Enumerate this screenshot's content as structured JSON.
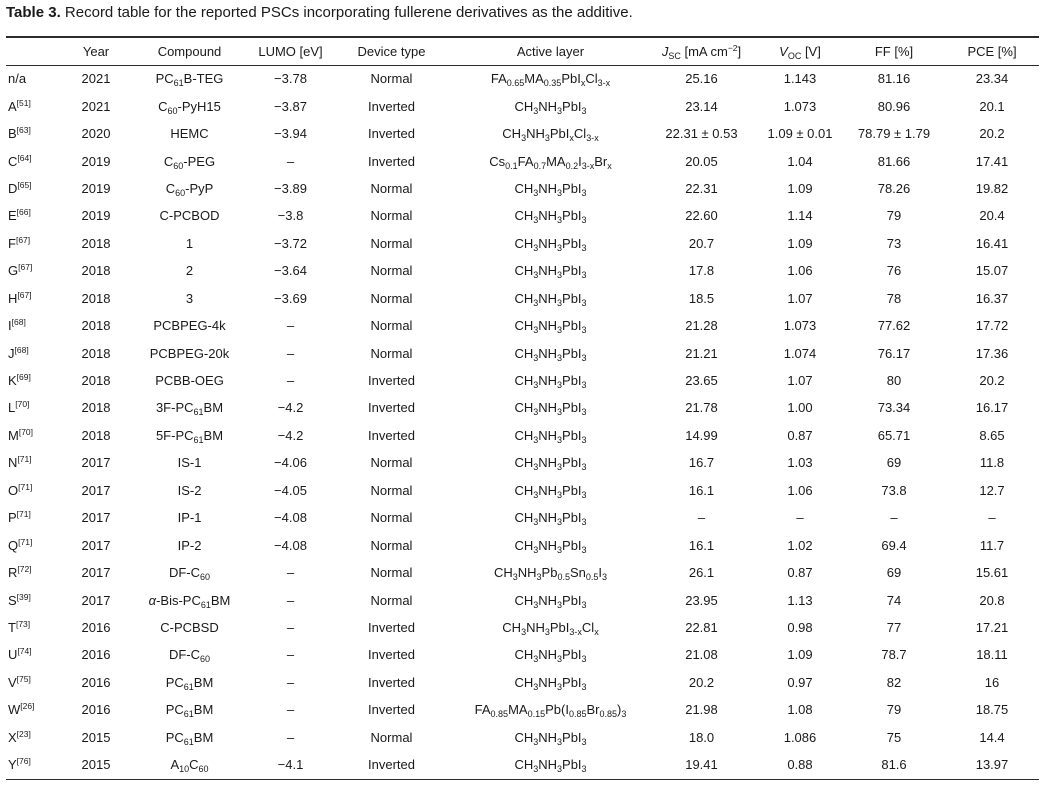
{
  "caption": {
    "label": "Table 3.",
    "text": "Record table for the reported PSCs incorporating fullerene derivatives as the additive."
  },
  "columns": [
    {
      "key": "id",
      "label": ""
    },
    {
      "key": "year",
      "label": "Year"
    },
    {
      "key": "compound",
      "label": "Compound"
    },
    {
      "key": "lumo",
      "label": "LUMO [eV]"
    },
    {
      "key": "device",
      "label": "Device type"
    },
    {
      "key": "active",
      "label": "Active layer"
    },
    {
      "key": "jsc",
      "label": "<i>J</i><sub>SC</sub> [mA cm<sup>−2</sup>]"
    },
    {
      "key": "voc",
      "label": "<i>V</i><sub>OC</sub> [V]"
    },
    {
      "key": "ff",
      "label": "FF [%]"
    },
    {
      "key": "pce",
      "label": "PCE [%]"
    }
  ],
  "rows": [
    {
      "id": "n/a",
      "year": "2021",
      "compound": "PC<sub>61</sub>B-TEG",
      "lumo": "−3.78",
      "device": "Normal",
      "active": "FA<sub>0.65</sub>MA<sub>0.35</sub>PbI<sub>x</sub>Cl<sub>3-x</sub>",
      "jsc": "25.16",
      "voc": "1.143",
      "ff": "81.16",
      "pce": "23.34"
    },
    {
      "id": "A<sup>[51]</sup>",
      "year": "2021",
      "compound": "C<sub>60</sub>-PyH15",
      "lumo": "−3.87",
      "device": "Inverted",
      "active": "CH<sub>3</sub>NH<sub>3</sub>PbI<sub>3</sub>",
      "jsc": "23.14",
      "voc": "1.073",
      "ff": "80.96",
      "pce": "20.1"
    },
    {
      "id": "B<sup>[63]</sup>",
      "year": "2020",
      "compound": "HEMC",
      "lumo": "−3.94",
      "device": "Inverted",
      "active": "CH<sub>3</sub>NH<sub>3</sub>PbI<sub>x</sub>Cl<sub>3-x</sub>",
      "jsc": "22.31 ± 0.53",
      "voc": "1.09 ± 0.01",
      "ff": "78.79 ± 1.79",
      "pce": "20.2"
    },
    {
      "id": "C<sup>[64]</sup>",
      "year": "2019",
      "compound": "C<sub>60</sub>-PEG",
      "lumo": "–",
      "device": "Inverted",
      "active": "Cs<sub>0.1</sub>FA<sub>0.7</sub>MA<sub>0.2</sub>I<sub>3-x</sub>Br<sub>x</sub>",
      "jsc": "20.05",
      "voc": "1.04",
      "ff": "81.66",
      "pce": "17.41"
    },
    {
      "id": "D<sup>[65]</sup>",
      "year": "2019",
      "compound": "C<sub>60</sub>-PyP",
      "lumo": "−3.89",
      "device": "Normal",
      "active": "CH<sub>3</sub>NH<sub>3</sub>PbI<sub>3</sub>",
      "jsc": "22.31",
      "voc": "1.09",
      "ff": "78.26",
      "pce": "19.82"
    },
    {
      "id": "E<sup>[66]</sup>",
      "year": "2019",
      "compound": "C-PCBOD",
      "lumo": "−3.8",
      "device": "Normal",
      "active": "CH<sub>3</sub>NH<sub>3</sub>PbI<sub>3</sub>",
      "jsc": "22.60",
      "voc": "1.14",
      "ff": "79",
      "pce": "20.4"
    },
    {
      "id": "F<sup>[67]</sup>",
      "year": "2018",
      "compound": "1",
      "lumo": "−3.72",
      "device": "Normal",
      "active": "CH<sub>3</sub>NH<sub>3</sub>PbI<sub>3</sub>",
      "jsc": "20.7",
      "voc": "1.09",
      "ff": "73",
      "pce": "16.41"
    },
    {
      "id": "G<sup>[67]</sup>",
      "year": "2018",
      "compound": "2",
      "lumo": "−3.64",
      "device": "Normal",
      "active": "CH<sub>3</sub>NH<sub>3</sub>PbI<sub>3</sub>",
      "jsc": "17.8",
      "voc": "1.06",
      "ff": "76",
      "pce": "15.07"
    },
    {
      "id": "H<sup>[67]</sup>",
      "year": "2018",
      "compound": "3",
      "lumo": "−3.69",
      "device": "Normal",
      "active": "CH<sub>3</sub>NH<sub>3</sub>PbI<sub>3</sub>",
      "jsc": "18.5",
      "voc": "1.07",
      "ff": "78",
      "pce": "16.37"
    },
    {
      "id": "I<sup>[68]</sup>",
      "year": "2018",
      "compound": "PCBPEG-4k",
      "lumo": "–",
      "device": "Normal",
      "active": "CH<sub>3</sub>NH<sub>3</sub>PbI<sub>3</sub>",
      "jsc": "21.28",
      "voc": "1.073",
      "ff": "77.62",
      "pce": "17.72"
    },
    {
      "id": "J<sup>[68]</sup>",
      "year": "2018",
      "compound": "PCBPEG-20k",
      "lumo": "–",
      "device": "Normal",
      "active": "CH<sub>3</sub>NH<sub>3</sub>PbI<sub>3</sub>",
      "jsc": "21.21",
      "voc": "1.074",
      "ff": "76.17",
      "pce": "17.36"
    },
    {
      "id": "K<sup>[69]</sup>",
      "year": "2018",
      "compound": "PCBB-OEG",
      "lumo": "–",
      "device": "Inverted",
      "active": "CH<sub>3</sub>NH<sub>3</sub>PbI<sub>3</sub>",
      "jsc": "23.65",
      "voc": "1.07",
      "ff": "80",
      "pce": "20.2"
    },
    {
      "id": "L<sup>[70]</sup>",
      "year": "2018",
      "compound": "3F-PC<sub>61</sub>BM",
      "lumo": "−4.2",
      "device": "Inverted",
      "active": "CH<sub>3</sub>NH<sub>3</sub>PbI<sub>3</sub>",
      "jsc": "21.78",
      "voc": "1.00",
      "ff": "73.34",
      "pce": "16.17"
    },
    {
      "id": "M<sup>[70]</sup>",
      "year": "2018",
      "compound": "5F-PC<sub>61</sub>BM",
      "lumo": "−4.2",
      "device": "Inverted",
      "active": "CH<sub>3</sub>NH<sub>3</sub>PbI<sub>3</sub>",
      "jsc": "14.99",
      "voc": "0.87",
      "ff": "65.71",
      "pce": "8.65"
    },
    {
      "id": "N<sup>[71]</sup>",
      "year": "2017",
      "compound": "IS-1",
      "lumo": "−4.06",
      "device": "Normal",
      "active": "CH<sub>3</sub>NH<sub>3</sub>PbI<sub>3</sub>",
      "jsc": "16.7",
      "voc": "1.03",
      "ff": "69",
      "pce": "11.8"
    },
    {
      "id": "O<sup>[71]</sup>",
      "year": "2017",
      "compound": "IS-2",
      "lumo": "−4.05",
      "device": "Normal",
      "active": "CH<sub>3</sub>NH<sub>3</sub>PbI<sub>3</sub>",
      "jsc": "16.1",
      "voc": "1.06",
      "ff": "73.8",
      "pce": "12.7"
    },
    {
      "id": "P<sup>[71]</sup>",
      "year": "2017",
      "compound": "IP-1",
      "lumo": "−4.08",
      "device": "Normal",
      "active": "CH<sub>3</sub>NH<sub>3</sub>PbI<sub>3</sub>",
      "jsc": "–",
      "voc": "–",
      "ff": "–",
      "pce": "–"
    },
    {
      "id": "Q<sup>[71]</sup>",
      "year": "2017",
      "compound": "IP-2",
      "lumo": "−4.08",
      "device": "Normal",
      "active": "CH<sub>3</sub>NH<sub>3</sub>PbI<sub>3</sub>",
      "jsc": "16.1",
      "voc": "1.02",
      "ff": "69.4",
      "pce": "11.7"
    },
    {
      "id": "R<sup>[72]</sup>",
      "year": "2017",
      "compound": "DF-C<sub>60</sub>",
      "lumo": "–",
      "device": "Normal",
      "active": "CH<sub>3</sub>NH<sub>3</sub>Pb<sub>0.5</sub>Sn<sub>0.5</sub>I<sub>3</sub>",
      "jsc": "26.1",
      "voc": "0.87",
      "ff": "69",
      "pce": "15.61"
    },
    {
      "id": "S<sup>[39]</sup>",
      "year": "2017",
      "compound": "<i>α</i>-Bis-PC<sub>61</sub>BM",
      "lumo": "–",
      "device": "Normal",
      "active": "CH<sub>3</sub>NH<sub>3</sub>PbI<sub>3</sub>",
      "jsc": "23.95",
      "voc": "1.13",
      "ff": "74",
      "pce": "20.8"
    },
    {
      "id": "T<sup>[73]</sup>",
      "year": "2016",
      "compound": "C-PCBSD",
      "lumo": "–",
      "device": "Inverted",
      "active": "CH<sub>3</sub>NH<sub>3</sub>PbI<sub>3-x</sub>Cl<sub>x</sub>",
      "jsc": "22.81",
      "voc": "0.98",
      "ff": "77",
      "pce": "17.21"
    },
    {
      "id": "U<sup>[74]</sup>",
      "year": "2016",
      "compound": "DF-C<sub>60</sub>",
      "lumo": "–",
      "device": "Inverted",
      "active": "CH<sub>3</sub>NH<sub>3</sub>PbI<sub>3</sub>",
      "jsc": "21.08",
      "voc": "1.09",
      "ff": "78.7",
      "pce": "18.11"
    },
    {
      "id": "V<sup>[75]</sup>",
      "year": "2016",
      "compound": "PC<sub>61</sub>BM",
      "lumo": "–",
      "device": "Inverted",
      "active": "CH<sub>3</sub>NH<sub>3</sub>PbI<sub>3</sub>",
      "jsc": "20.2",
      "voc": "0.97",
      "ff": "82",
      "pce": "16"
    },
    {
      "id": "W<sup>[26]</sup>",
      "year": "2016",
      "compound": "PC<sub>61</sub>BM",
      "lumo": "–",
      "device": "Inverted",
      "active": "FA<sub>0.85</sub>MA<sub>0.15</sub>Pb(I<sub>0.85</sub>Br<sub>0.85</sub>)<sub>3</sub>",
      "jsc": "21.98",
      "voc": "1.08",
      "ff": "79",
      "pce": "18.75"
    },
    {
      "id": "X<sup>[23]</sup>",
      "year": "2015",
      "compound": "PC<sub>61</sub>BM",
      "lumo": "–",
      "device": "Normal",
      "active": "CH<sub>3</sub>NH<sub>3</sub>PbI<sub>3</sub>",
      "jsc": "18.0",
      "voc": "1.086",
      "ff": "75",
      "pce": "14.4"
    },
    {
      "id": "Y<sup>[76]</sup>",
      "year": "2015",
      "compound": "A<sub>10</sub>C<sub>60</sub>",
      "lumo": "−4.1",
      "device": "Inverted",
      "active": "CH<sub>3</sub>NH<sub>3</sub>PbI<sub>3</sub>",
      "jsc": "19.41",
      "voc": "0.88",
      "ff": "81.6",
      "pce": "13.97"
    }
  ]
}
